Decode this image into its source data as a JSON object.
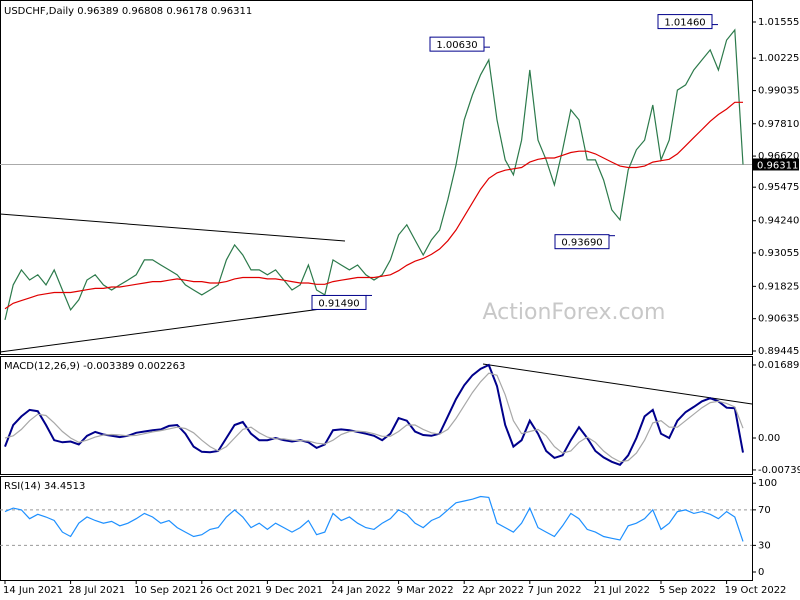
{
  "chart_data": [
    {
      "type": "line",
      "title": "USDCHF,Daily  0.96389 0.96808 0.96178 0.96311",
      "categories": [
        "14 Jun 2021",
        null,
        null,
        null,
        null,
        null,
        null,
        null,
        "28 Jul 2021",
        null,
        null,
        null,
        null,
        null,
        null,
        null,
        "10 Sep 2021",
        null,
        null,
        null,
        null,
        null,
        null,
        null,
        "26 Oct 2021",
        null,
        null,
        null,
        null,
        null,
        null,
        null,
        "9 Dec 2021",
        null,
        null,
        null,
        null,
        null,
        null,
        null,
        "24 Jan 2022",
        null,
        null,
        null,
        null,
        null,
        null,
        null,
        "9 Mar 2022",
        null,
        null,
        null,
        null,
        null,
        null,
        null,
        "22 Apr 2022",
        null,
        null,
        null,
        null,
        null,
        null,
        null,
        "7 Jun 2022",
        null,
        null,
        null,
        null,
        null,
        null,
        null,
        "21 Jul 2022",
        null,
        null,
        null,
        null,
        null,
        null,
        null,
        "5 Sep 2022",
        null,
        null,
        null,
        null,
        null,
        null,
        null,
        "19 Oct 2022",
        null,
        null
      ],
      "series": [
        {
          "color": "#2c7a4b",
          "values": [
            0.9059,
            0.9188,
            0.9243,
            0.9206,
            0.9225,
            0.9188,
            0.9243,
            0.9169,
            0.9096,
            0.9133,
            0.9206,
            0.9225,
            0.9188,
            0.9169,
            0.9188,
            0.9206,
            0.9225,
            0.928,
            0.928,
            0.9261,
            0.9243,
            0.9225,
            0.9188,
            0.9169,
            0.9151,
            0.9169,
            0.9188,
            0.928,
            0.9335,
            0.9298,
            0.9243,
            0.9243,
            0.9225,
            0.9243,
            0.9206,
            0.9169,
            0.9188,
            0.9261,
            0.9169,
            0.9151,
            0.928,
            0.9261,
            0.9243,
            0.9261,
            0.9225,
            0.9206,
            0.9225,
            0.928,
            0.9372,
            0.9409,
            0.9353,
            0.9298,
            0.9353,
            0.939,
            0.9501,
            0.9629,
            0.9795,
            0.9887,
            0.9961,
            1.0016,
            0.9795,
            0.9648,
            0.9593,
            0.9721,
            0.9979,
            0.9721,
            0.9648,
            0.9556,
            0.9685,
            0.9832,
            0.9795,
            0.9648,
            0.9648,
            0.9574,
            0.9464,
            0.9427,
            0.9611,
            0.9685,
            0.9721,
            0.985,
            0.9648,
            0.9721,
            0.9905,
            0.9924,
            0.9979,
            1.0016,
            1.0053,
            0.9979,
            1.0089,
            1.0126,
            0.96311
          ]
        },
        {
          "color": "#e00000",
          "values": [
            0.91,
            0.912,
            0.913,
            0.914,
            0.915,
            0.9155,
            0.916,
            0.916,
            0.916,
            0.9165,
            0.917,
            0.9175,
            0.9175,
            0.918,
            0.918,
            0.9185,
            0.919,
            0.9195,
            0.92,
            0.92,
            0.9205,
            0.921,
            0.9205,
            0.92,
            0.92,
            0.9195,
            0.9195,
            0.92,
            0.921,
            0.9215,
            0.9215,
            0.9215,
            0.921,
            0.921,
            0.9205,
            0.92,
            0.9195,
            0.9195,
            0.919,
            0.919,
            0.92,
            0.9205,
            0.921,
            0.9215,
            0.9215,
            0.9215,
            0.922,
            0.9225,
            0.924,
            0.926,
            0.9275,
            0.9285,
            0.93,
            0.932,
            0.935,
            0.939,
            0.944,
            0.949,
            0.954,
            0.958,
            0.96,
            0.961,
            0.9615,
            0.962,
            0.964,
            0.965,
            0.9655,
            0.9655,
            0.9665,
            0.9675,
            0.968,
            0.968,
            0.967,
            0.9655,
            0.964,
            0.9625,
            0.962,
            0.962,
            0.9625,
            0.964,
            0.9645,
            0.965,
            0.967,
            0.97,
            0.973,
            0.976,
            0.979,
            0.9815,
            0.9835,
            0.986,
            0.986
          ]
        }
      ],
      "ylim": [
        0.89335,
        1.02365
      ],
      "yticks": [
        1.01555,
        1.00225,
        {
          "value": 0.9903,
          "label": "0.99035"
        },
        {
          "value": 0.9781,
          "label": "0.97810"
        },
        {
          "value": 0.9662,
          "label": "0.96620"
        },
        0.95475,
        {
          "value": 0.9424,
          "label": "0.94240"
        },
        0.93055,
        0.91825,
        0.90635,
        0.89445
      ],
      "annotations": [
        {
          "value": 1.0063,
          "label": "1.00630"
        },
        {
          "value": 1.0146,
          "label": "1.01460"
        },
        {
          "value": 0.9369,
          "label": "0.93690"
        },
        {
          "value": 0.9149,
          "label": "0.91490"
        }
      ],
      "last_price": 0.96311,
      "watermark": "ActionForex.com"
    },
    {
      "type": "line",
      "title": "MACD(12,26,9) -0.003389 0.002263",
      "series": [
        {
          "color": "#00008b",
          "values": [
            -0.002,
            0.003,
            0.005,
            0.0065,
            0.0062,
            0.003,
            -0.0005,
            -0.001,
            -0.0008,
            -0.0015,
            0.0005,
            0.0014,
            0.0008,
            0.0005,
            0.0002,
            0.0005,
            0.0012,
            0.0015,
            0.0018,
            0.002,
            0.0028,
            0.003,
            0.001,
            -0.002,
            -0.0032,
            -0.0033,
            -0.003,
            0,
            0.003,
            0.0037,
            0.001,
            -0.0005,
            -0.0005,
            0,
            -0.0005,
            -0.0008,
            -0.0005,
            -0.001,
            -0.0023,
            -0.0015,
            0.0018,
            0.002,
            0.0018,
            0.0014,
            0.001,
            0.0005,
            -0.0005,
            0.001,
            0.0046,
            0.004,
            0.0015,
            0.0007,
            0.0005,
            0.001,
            0.005,
            0.009,
            0.0122,
            0.0145,
            0.016,
            0.0169,
            0.012,
            0.003,
            -0.002,
            -0.0005,
            0.004,
            0.001,
            -0.003,
            -0.0046,
            -0.004,
            -0.0005,
            0.0025,
            0,
            -0.003,
            -0.0045,
            -0.0055,
            -0.0062,
            -0.004,
            0,
            0.005,
            0.0065,
            0.001,
            0,
            0.004,
            0.006,
            0.0072,
            0.0085,
            0.0092,
            0.0085,
            0.007,
            0.0069,
            -0.003389
          ]
        },
        {
          "color": "#a8a8a8",
          "values": [
            0,
            0.0005,
            0.002,
            0.004,
            0.0055,
            0.0052,
            0.0035,
            0.0015,
            0,
            -0.001,
            -0.0005,
            0.0002,
            0.0007,
            0.0008,
            0.0007,
            0.0005,
            0.0006,
            0.001,
            0.0014,
            0.0017,
            0.0021,
            0.0025,
            0.0022,
            0.0012,
            -0.0005,
            -0.002,
            -0.003,
            -0.002,
            0,
            0.002,
            0.0025,
            0.0012,
            0.0002,
            -0.0002,
            -0.0002,
            -0.0005,
            -0.0006,
            -0.0007,
            -0.0012,
            -0.0014,
            -0.0005,
            0.0008,
            0.0015,
            0.0016,
            0.0014,
            0.001,
            0.0004,
            0.0004,
            0.0015,
            0.003,
            0.003,
            0.002,
            0.0012,
            0.0009,
            0.002,
            0.0045,
            0.0075,
            0.0105,
            0.013,
            0.015,
            0.0145,
            0.01,
            0.004,
            0.001,
            0.0015,
            0.002,
            0.0005,
            -0.002,
            -0.0035,
            -0.003,
            -0.001,
            0.0002,
            -0.001,
            -0.003,
            -0.0045,
            -0.0055,
            -0.0052,
            -0.0035,
            -0.0005,
            0.0035,
            0.004,
            0.0025,
            0.0025,
            0.004,
            0.0055,
            0.007,
            0.0082,
            0.0085,
            0.008,
            0.0072,
            0.002263
          ]
        }
      ],
      "ylim": [
        -0.00833,
        0.01874
      ],
      "yticks": [
        0.016893,
        {
          "value": 0,
          "label": "0.00"
        },
        -0.007393
      ]
    },
    {
      "type": "line",
      "title": "RSI(14) 34.4513",
      "series": [
        {
          "color": "#1e90ff",
          "values": [
            68,
            72,
            70,
            60,
            65,
            62,
            58,
            45,
            40,
            55,
            62,
            58,
            55,
            57,
            52,
            55,
            60,
            66,
            62,
            55,
            58,
            50,
            45,
            40,
            42,
            48,
            50,
            62,
            70,
            62,
            50,
            55,
            48,
            55,
            50,
            45,
            50,
            58,
            42,
            45,
            66,
            58,
            62,
            55,
            50,
            48,
            55,
            60,
            70,
            65,
            55,
            50,
            58,
            62,
            70,
            78,
            80,
            82,
            85,
            84,
            55,
            50,
            45,
            55,
            72,
            50,
            45,
            40,
            52,
            66,
            60,
            48,
            45,
            40,
            38,
            36,
            52,
            55,
            60,
            70,
            48,
            55,
            68,
            70,
            66,
            68,
            65,
            60,
            68,
            62,
            34.4513
          ]
        }
      ],
      "ylim": [
        -9,
        107
      ],
      "yticks": [
        100,
        70,
        30,
        0
      ],
      "dashed_levels": [
        70,
        30
      ]
    }
  ]
}
